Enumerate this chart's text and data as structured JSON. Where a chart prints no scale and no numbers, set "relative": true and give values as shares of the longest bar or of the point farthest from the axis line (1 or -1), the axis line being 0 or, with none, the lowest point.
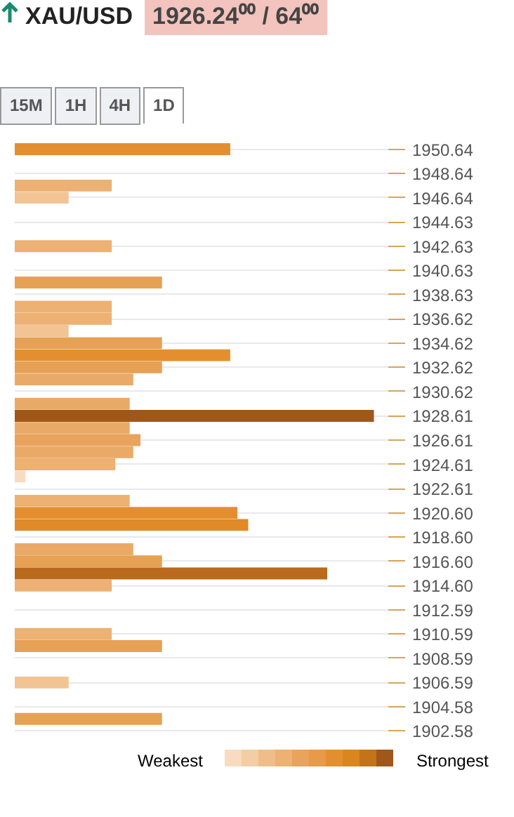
{
  "chart_data": {
    "type": "bar",
    "orientation": "horizontal",
    "relative": true,
    "grid": "y",
    "tick_labels": "y",
    "title": "XAU/USD",
    "subtitle": "1926.24⁰⁰ / 64⁰⁰",
    "annotations": [
      "15M",
      "1H",
      "4H",
      "1D",
      "Weakest",
      "Strongest"
    ],
    "categories": [
      "1950.64",
      null,
      "1948.64",
      null,
      "1946.64",
      null,
      "1944.63",
      null,
      "1942.63",
      null,
      "1940.63",
      null,
      "1938.63",
      null,
      "1936.62",
      null,
      "1934.62",
      null,
      "1932.62",
      null,
      "1930.62",
      null,
      "1928.61",
      null,
      "1926.61",
      null,
      "1924.61",
      null,
      "1922.61",
      null,
      "1920.60",
      null,
      "1918.60",
      null,
      "1916.60",
      null,
      "1914.60",
      null,
      "1912.59",
      null,
      "1910.59",
      null,
      "1908.59",
      null,
      "1906.59",
      null,
      "1904.58",
      null,
      "1902.58"
    ],
    "values": [
      0.6,
      null,
      null,
      0.27,
      0.15,
      null,
      null,
      null,
      0.27,
      null,
      null,
      0.41,
      null,
      0.27,
      0.27,
      0.15,
      0.41,
      0.6,
      0.41,
      0.33,
      null,
      0.32,
      1.0,
      0.32,
      0.35,
      0.33,
      0.28,
      0.03,
      null,
      0.32,
      0.62,
      0.65,
      null,
      0.33,
      0.41,
      0.87,
      0.27,
      null,
      null,
      null,
      0.27,
      0.41,
      null,
      null,
      0.15,
      null,
      null,
      0.41,
      null
    ],
    "colors": [
      "#e38f2f",
      null,
      null,
      "#ecb173",
      "#f2c494",
      null,
      null,
      null,
      "#ecb173",
      null,
      null,
      "#e6a155",
      null,
      "#ecb173",
      "#ecb173",
      "#f2c494",
      "#e6a155",
      "#e38f2f",
      "#e6a155",
      "#eaaa67",
      null,
      "#eaaa67",
      "#a0581a",
      "#eaaa67",
      "#e8a35c",
      "#eaaa67",
      "#ecb173",
      "#f6dcc0",
      null,
      "#ecb173",
      "#e38f2f",
      "#e08a28",
      null,
      "#eaaa67",
      "#e6a155",
      "#b96a1c",
      "#ecb173",
      null,
      null,
      null,
      "#ecb173",
      "#e6a155",
      null,
      null,
      "#f2c494",
      null,
      null,
      "#e6a155",
      null
    ]
  }
}
